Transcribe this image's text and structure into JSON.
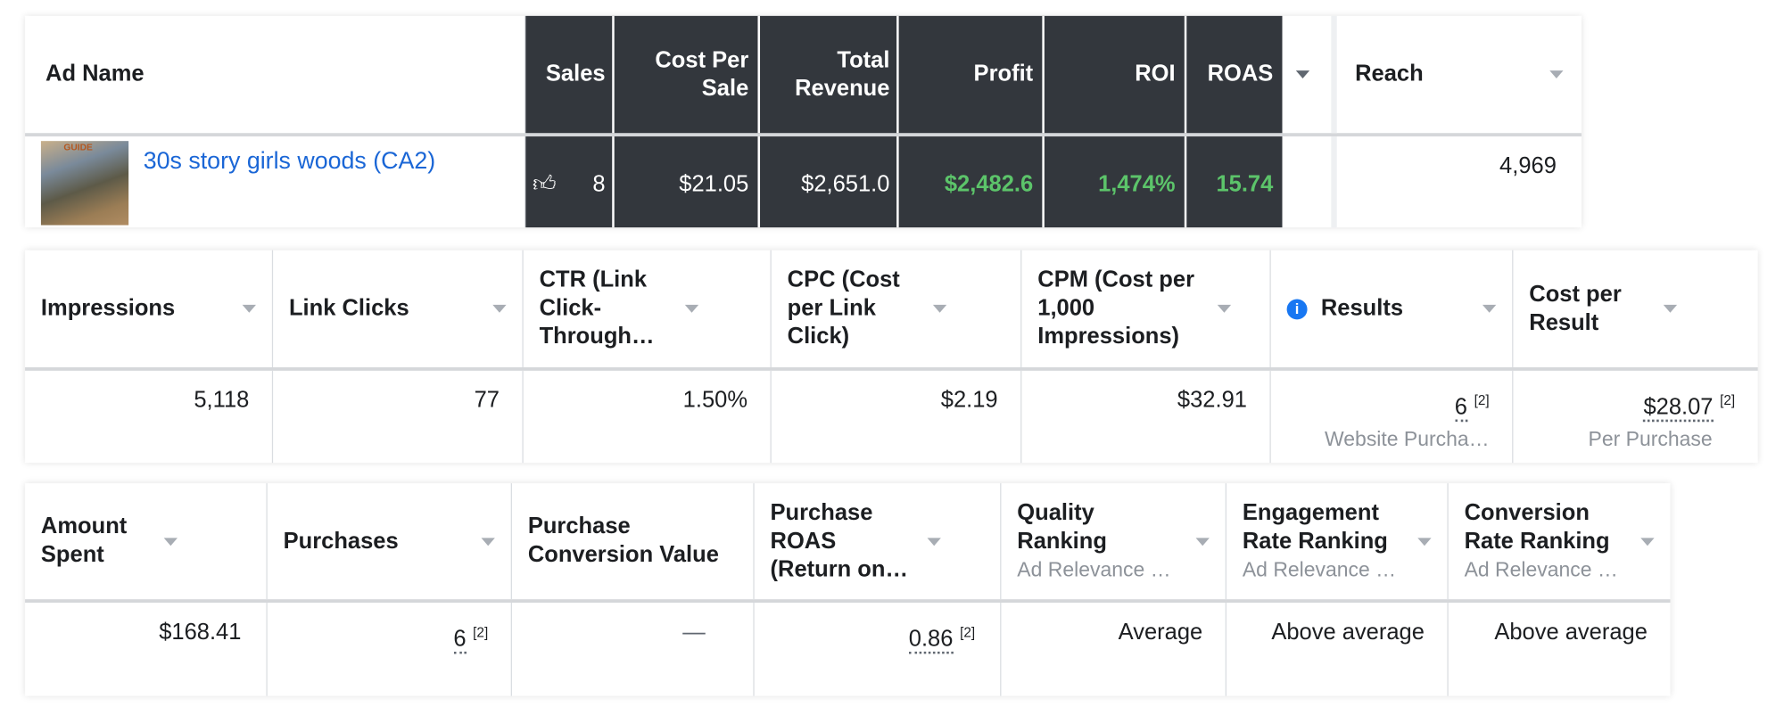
{
  "panel1": {
    "headers": {
      "ad_name": "Ad Name",
      "sales": "Sales",
      "cost_per_sale": "Cost Per Sale",
      "total_revenue": "Total Revenue",
      "profit": "Profit",
      "roi": "ROI",
      "roas": "ROAS",
      "reach": "Reach"
    },
    "row": {
      "ad_name": "30s story girls woods (CA2)",
      "thumbnail_text": "GUIDE",
      "sales": "8",
      "cost_per_sale": "$21.05",
      "total_revenue": "$2,651.0",
      "profit": "$2,482.6",
      "roi": "1,474%",
      "roas": "15.74",
      "reach": "4,969"
    }
  },
  "panel2": {
    "headers": {
      "impressions": "Impressions",
      "link_clicks": "Link Clicks",
      "ctr": "CTR (Link Click-Through…",
      "cpc": "CPC (Cost per Link Click)",
      "cpm": "CPM (Cost per 1,000 Impressions)",
      "results": "Results",
      "cost_per_result": "Cost per Result"
    },
    "row": {
      "impressions": "5,118",
      "link_clicks": "77",
      "ctr": "1.50%",
      "cpc": "$2.19",
      "cpm": "$32.91",
      "results": "6",
      "results_note": "[2]",
      "results_sub": "Website Purcha…",
      "cost_per_result": "$28.07",
      "cost_per_result_note": "[2]",
      "cost_per_result_sub": "Per Purchase"
    }
  },
  "panel3": {
    "headers": {
      "amount_spent": "Amount Spent",
      "purchases": "Purchases",
      "purchase_conversion_value": "Purchase Conversion Value",
      "purchase_roas": "Purchase ROAS (Return on…",
      "quality_ranking": "Quality Ranking",
      "engagement_rate_ranking": "Engagement Rate Ranking",
      "conversion_rate_ranking": "Conversion Rate Ranking",
      "ranking_sub": "Ad Relevance …"
    },
    "row": {
      "amount_spent": "$168.41",
      "purchases": "6",
      "purchases_note": "[2]",
      "purchase_conversion_value": "—",
      "purchase_roas": "0.86",
      "purchase_roas_note": "[2]",
      "quality_ranking": "Average",
      "engagement_rate_ranking": "Above average",
      "conversion_rate_ranking": "Above average"
    }
  },
  "colors": {
    "dark_header": "#33373d",
    "positive": "#5cc46a",
    "link": "#1a66d6",
    "info": "#1877f2"
  }
}
